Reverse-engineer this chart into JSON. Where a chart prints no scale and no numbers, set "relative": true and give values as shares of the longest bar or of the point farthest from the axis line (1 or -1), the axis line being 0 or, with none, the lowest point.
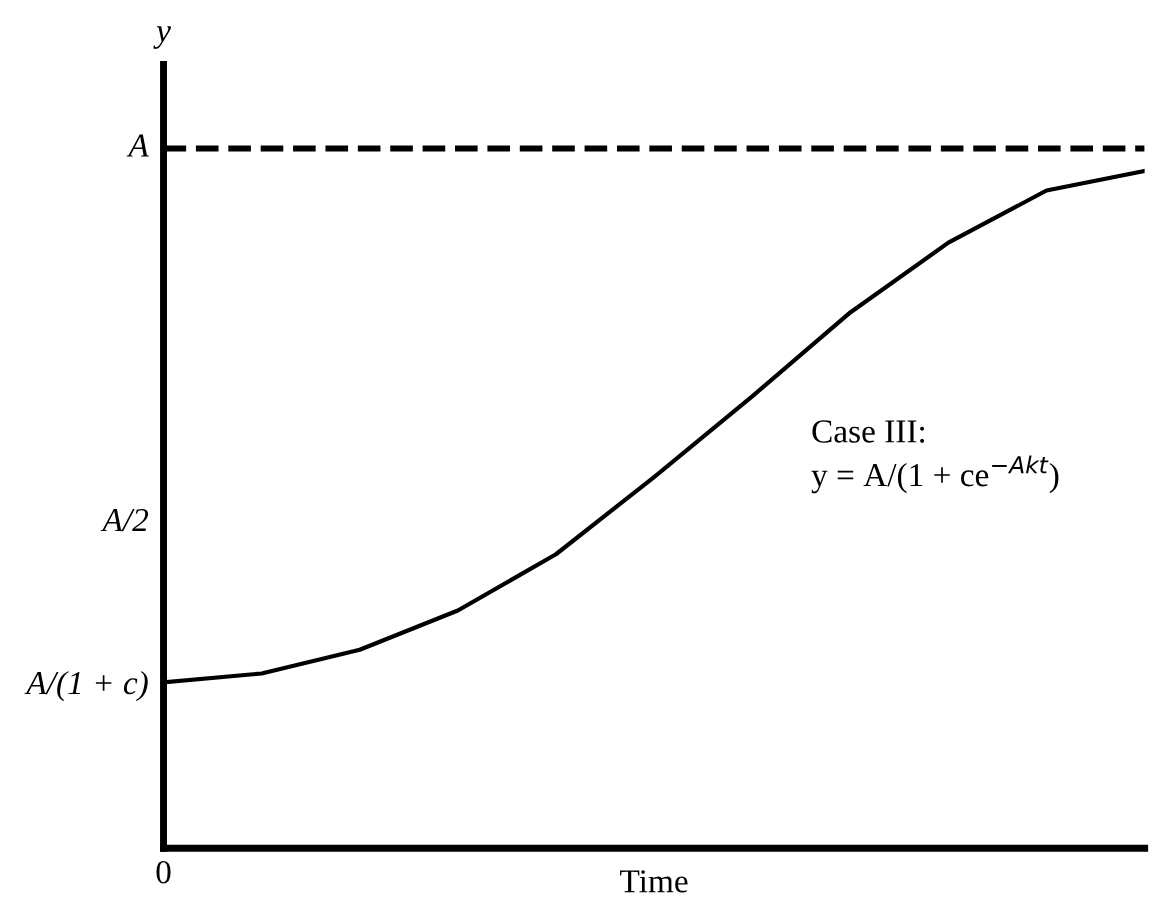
{
  "chart_data": {
    "type": "line",
    "xlabel": "Time",
    "ylabel": "y",
    "relative": true,
    "categories": [
      null,
      null,
      null,
      null,
      null,
      null,
      null,
      null,
      null,
      null,
      null
    ],
    "series": [
      {
        "color": "#000000",
        "values": [
          0.245,
          0.258,
          0.293,
          0.351,
          0.434,
          0.548,
          0.667,
          0.791,
          0.894,
          0.971,
          1.0
        ]
      }
    ],
    "ref_lines": [
      {
        "axis": "y",
        "value": 1.033,
        "label": "A",
        "color": "#000000",
        "line_style": "dashed"
      }
    ],
    "annotations": [
      "0",
      "Case III:\ny = A/(1 + ce$^{−Akt}$)",
      "A/(1 + c)",
      "A/2"
    ],
    "grid": false,
    "legend": false,
    "marker": "none",
    "line_style": "solid"
  }
}
